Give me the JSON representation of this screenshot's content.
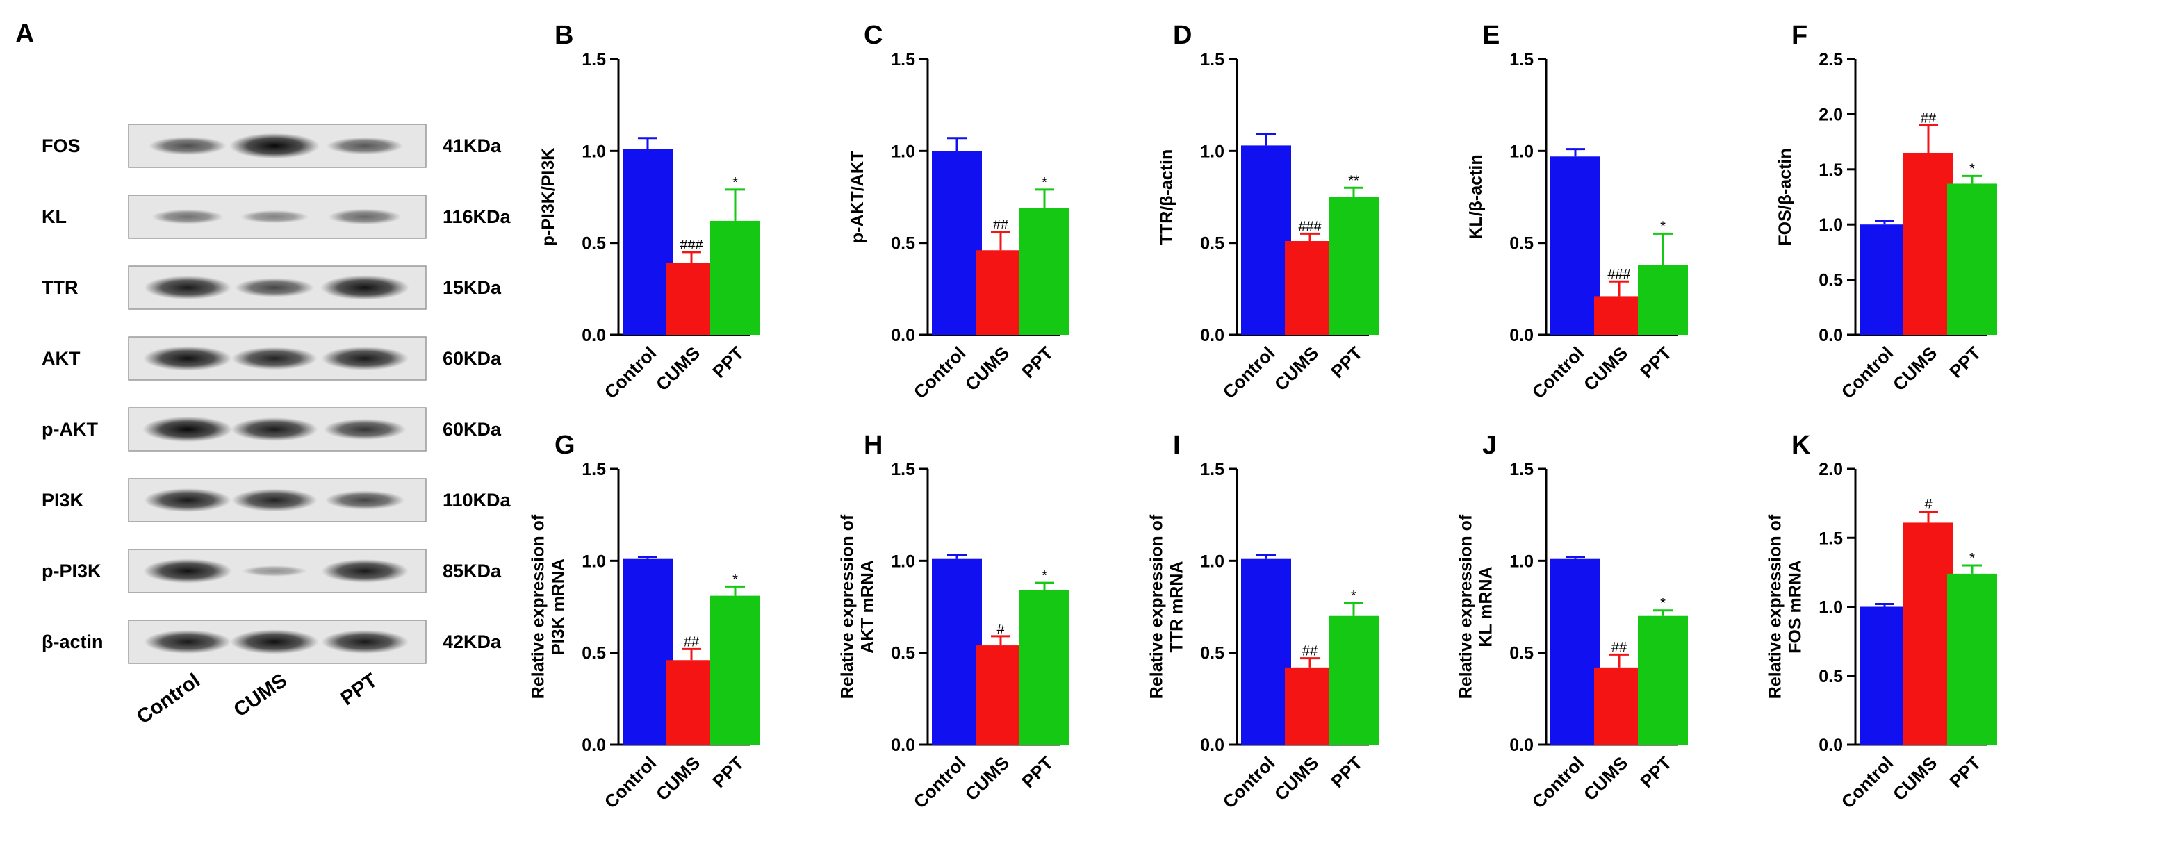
{
  "panel_a": {
    "label": "A",
    "proteins": [
      {
        "name": "FOS",
        "kda": "41KDa",
        "intensity": [
          0.55,
          0.95,
          0.5
        ]
      },
      {
        "name": "KL",
        "kda": "116KDa",
        "intensity": [
          0.35,
          0.25,
          0.4
        ]
      },
      {
        "name": "TTR",
        "kda": "15KDa",
        "intensity": [
          0.85,
          0.6,
          0.9
        ]
      },
      {
        "name": "AKT",
        "kda": "60KDa",
        "intensity": [
          0.9,
          0.8,
          0.85
        ]
      },
      {
        "name": "p-AKT",
        "kda": "60KDa",
        "intensity": [
          0.95,
          0.85,
          0.7
        ]
      },
      {
        "name": "PI3K",
        "kda": "110KDa",
        "intensity": [
          0.85,
          0.8,
          0.6
        ]
      },
      {
        "name": "p-PI3K",
        "kda": "85KDa",
        "intensity": [
          0.9,
          0.15,
          0.85
        ]
      },
      {
        "name": "β-actin",
        "kda": "42KDa",
        "intensity": [
          0.85,
          0.9,
          0.85
        ]
      }
    ],
    "groups": [
      "Control",
      "CUMS",
      "PPT"
    ]
  },
  "colors": {
    "control": "#1010f0",
    "cums": "#f41414",
    "ppt": "#14c814"
  },
  "chart_data": [
    {
      "panel": "B",
      "type": "bar",
      "categories": [
        "Control",
        "CUMS",
        "PPT"
      ],
      "values": [
        1.01,
        0.39,
        0.62
      ],
      "errors": [
        0.06,
        0.06,
        0.17
      ],
      "annotations": [
        "",
        "###",
        "*"
      ],
      "ylabel": "p-PI3K/PI3K",
      "ylim": [
        0,
        1.5
      ],
      "yticks": [
        "0.0",
        "0.5",
        "1.0",
        "1.5"
      ]
    },
    {
      "panel": "C",
      "type": "bar",
      "categories": [
        "Control",
        "CUMS",
        "PPT"
      ],
      "values": [
        1.0,
        0.46,
        0.69
      ],
      "errors": [
        0.07,
        0.1,
        0.1
      ],
      "annotations": [
        "",
        "##",
        "*"
      ],
      "ylabel": "p-AKT/AKT",
      "ylim": [
        0,
        1.5
      ],
      "yticks": [
        "0.0",
        "0.5",
        "1.0",
        "1.5"
      ]
    },
    {
      "panel": "D",
      "type": "bar",
      "categories": [
        "Control",
        "CUMS",
        "PPT"
      ],
      "values": [
        1.03,
        0.51,
        0.75
      ],
      "errors": [
        0.06,
        0.04,
        0.05
      ],
      "annotations": [
        "",
        "###",
        "**"
      ],
      "ylabel": "TTR/β-actin",
      "ylim": [
        0,
        1.5
      ],
      "yticks": [
        "0.0",
        "0.5",
        "1.0",
        "1.5"
      ]
    },
    {
      "panel": "E",
      "type": "bar",
      "categories": [
        "Control",
        "CUMS",
        "PPT"
      ],
      "values": [
        0.97,
        0.21,
        0.38
      ],
      "errors": [
        0.04,
        0.08,
        0.17
      ],
      "annotations": [
        "",
        "###",
        "*"
      ],
      "ylabel": "KL/β-actin",
      "ylim": [
        0,
        1.5
      ],
      "yticks": [
        "0.0",
        "0.5",
        "1.0",
        "1.5"
      ]
    },
    {
      "panel": "F",
      "type": "bar",
      "categories": [
        "Control",
        "CUMS",
        "PPT"
      ],
      "values": [
        1.0,
        1.65,
        1.37
      ],
      "errors": [
        0.03,
        0.25,
        0.07
      ],
      "annotations": [
        "",
        "##",
        "*"
      ],
      "ylabel": "FOS/β-actin",
      "ylim": [
        0,
        2.5
      ],
      "yticks": [
        "0.0",
        "0.5",
        "1.0",
        "1.5",
        "2.0",
        "2.5"
      ]
    },
    {
      "panel": "G",
      "type": "bar",
      "categories": [
        "Control",
        "CUMS",
        "PPT"
      ],
      "values": [
        1.01,
        0.46,
        0.81
      ],
      "errors": [
        0.01,
        0.06,
        0.05
      ],
      "annotations": [
        "",
        "##",
        "*"
      ],
      "ylabel": "Relative expression of PI3K mRNA",
      "ylim": [
        0,
        1.5
      ],
      "yticks": [
        "0.0",
        "0.5",
        "1.0",
        "1.5"
      ]
    },
    {
      "panel": "H",
      "type": "bar",
      "categories": [
        "Control",
        "CUMS",
        "PPT"
      ],
      "values": [
        1.01,
        0.54,
        0.84
      ],
      "errors": [
        0.02,
        0.05,
        0.04
      ],
      "annotations": [
        "",
        "#",
        "*"
      ],
      "ylabel": "Relative expression of AKT mRNA",
      "ylim": [
        0,
        1.5
      ],
      "yticks": [
        "0.0",
        "0.5",
        "1.0",
        "1.5"
      ]
    },
    {
      "panel": "I",
      "type": "bar",
      "categories": [
        "Control",
        "CUMS",
        "PPT"
      ],
      "values": [
        1.01,
        0.42,
        0.7
      ],
      "errors": [
        0.02,
        0.05,
        0.07
      ],
      "annotations": [
        "",
        "##",
        "*"
      ],
      "ylabel": "Relative expression of TTR mRNA",
      "ylim": [
        0,
        1.5
      ],
      "yticks": [
        "0.0",
        "0.5",
        "1.0",
        "1.5"
      ]
    },
    {
      "panel": "J",
      "type": "bar",
      "categories": [
        "Control",
        "CUMS",
        "PPT"
      ],
      "values": [
        1.01,
        0.42,
        0.7
      ],
      "errors": [
        0.01,
        0.07,
        0.03
      ],
      "annotations": [
        "",
        "##",
        "*"
      ],
      "ylabel": "Relative expression of KL mRNA",
      "ylim": [
        0,
        1.5
      ],
      "yticks": [
        "0.0",
        "0.5",
        "1.0",
        "1.5"
      ]
    },
    {
      "panel": "K",
      "type": "bar",
      "categories": [
        "Control",
        "CUMS",
        "PPT"
      ],
      "values": [
        1.0,
        1.61,
        1.24
      ],
      "errors": [
        0.02,
        0.08,
        0.06
      ],
      "annotations": [
        "",
        "#",
        "*"
      ],
      "ylabel": "Relative expression of FOS mRNA",
      "ylim": [
        0,
        2.0
      ],
      "yticks": [
        "0.0",
        "0.5",
        "1.0",
        "1.5",
        "2.0"
      ]
    }
  ]
}
